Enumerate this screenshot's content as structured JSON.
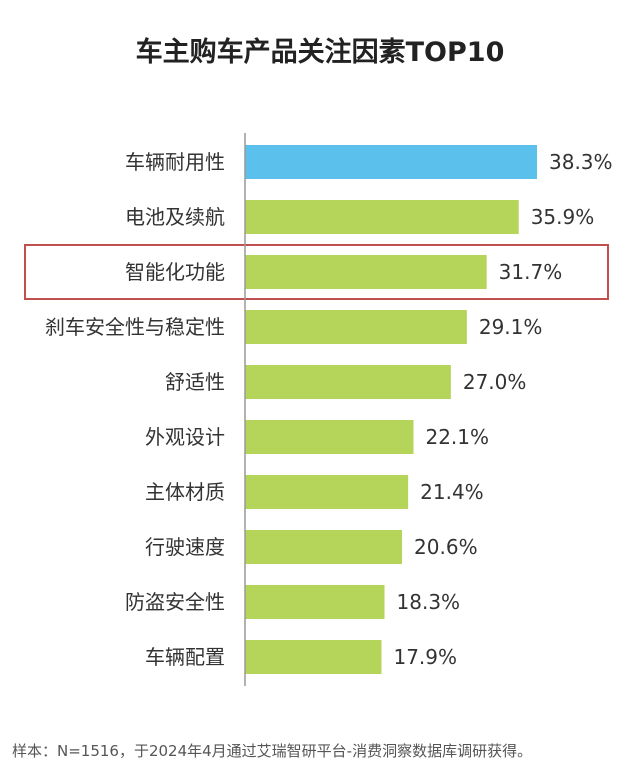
{
  "chart_data": {
    "type": "bar",
    "orientation": "horizontal",
    "title": "车主购车产品关注因素TOP10",
    "categories": [
      "车辆耐用性",
      "电池及续航",
      "智能化功能",
      "刹车安全性与稳定性",
      "舒适性",
      "外观设计",
      "主体材质",
      "行驶速度",
      "防盗安全性",
      "车辆配置"
    ],
    "values": [
      38.3,
      35.9,
      31.7,
      29.1,
      27.0,
      22.1,
      21.4,
      20.6,
      18.3,
      17.9
    ],
    "value_labels": [
      "38.3%",
      "35.9%",
      "31.7%",
      "29.1%",
      "27.0%",
      "22.1%",
      "21.4%",
      "20.6%",
      "18.3%",
      "17.9%"
    ],
    "xlim": [
      0,
      40
    ],
    "grid": false,
    "highlighted_category": "智能化功能",
    "colors": {
      "first_bar": "#5BC0EB",
      "other_bars": "#B5D45A",
      "highlight_box": "#C0504D",
      "axis": "#999999",
      "label_text": "#333333"
    }
  },
  "footnote": "样本：N=1516，于2024年4月通过艾瑞智研平台-消费洞察数据库调研获得。"
}
